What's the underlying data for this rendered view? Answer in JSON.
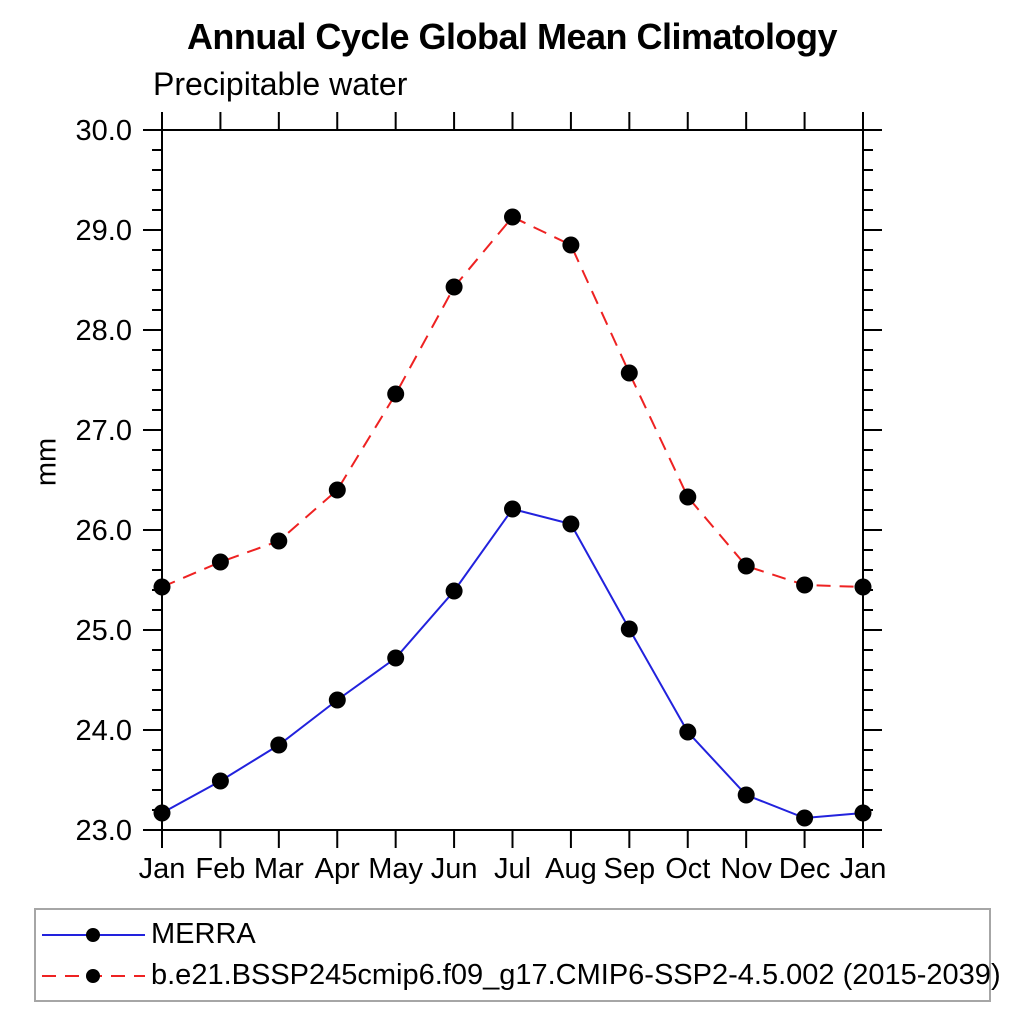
{
  "page": {
    "background": "#ffffff",
    "frame_color": "#000000"
  },
  "chart_data": {
    "type": "line",
    "title": "Annual Cycle Global Mean Climatology",
    "subtitle": "Precipitable water",
    "xlabel": "",
    "ylabel": "mm",
    "categories": [
      "Jan",
      "Feb",
      "Mar",
      "Apr",
      "May",
      "Jun",
      "Jul",
      "Aug",
      "Sep",
      "Oct",
      "Nov",
      "Dec",
      "Jan"
    ],
    "ylim": [
      23.0,
      30.0
    ],
    "ytick_step": 1.0,
    "ytick_minor_step": 0.2,
    "ytick_labels": [
      "23.0",
      "24.0",
      "25.0",
      "26.0",
      "27.0",
      "28.0",
      "29.0",
      "30.0"
    ],
    "grid": false,
    "legend_position": "bottom-left-box",
    "series": [
      {
        "name": "MERRA",
        "color": "#2222dd",
        "line_style": "solid",
        "marker": "circle",
        "marker_color": "#000000",
        "values": [
          23.17,
          23.49,
          23.85,
          24.3,
          24.72,
          25.39,
          26.21,
          26.06,
          25.01,
          23.98,
          23.35,
          23.12,
          23.17
        ]
      },
      {
        "name": "b.e21.BSSP245cmip6.f09_g17.CMIP6-SSP2-4.5.002 (2015-2039)",
        "color": "#ee2222",
        "line_style": "dashed",
        "marker": "circle",
        "marker_color": "#000000",
        "values": [
          25.43,
          25.68,
          25.89,
          26.4,
          27.36,
          28.43,
          29.13,
          28.85,
          27.57,
          26.33,
          25.64,
          25.45,
          25.43
        ]
      }
    ]
  }
}
